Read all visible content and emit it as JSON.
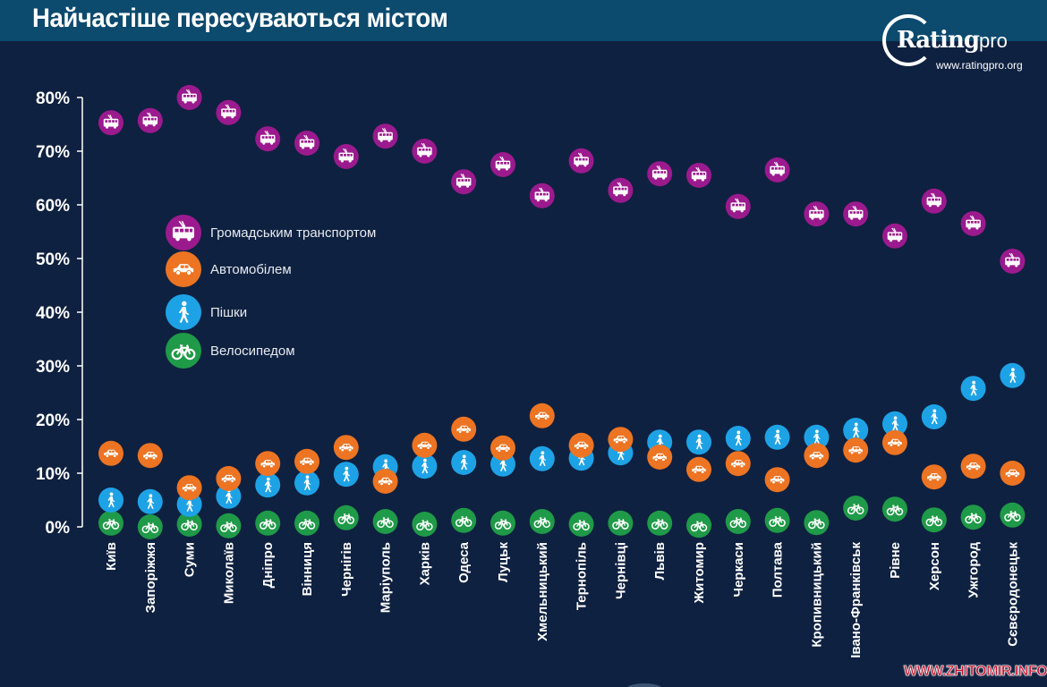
{
  "header": {
    "title": "Найчастіше пересуваються містом",
    "logo_text": "Rating",
    "logo_suffix": "pro",
    "logo_url": "www.ratingpro.org"
  },
  "watermark": "WWW.ZHITOMIR.INFO",
  "chart_data": {
    "type": "scatter",
    "title": "Найчастіше пересуваються містом",
    "xlabel": "",
    "ylabel": "",
    "ylim": [
      0,
      80
    ],
    "yticks": [
      0,
      10,
      20,
      30,
      40,
      50,
      60,
      70,
      80
    ],
    "ytick_labels": [
      "0%",
      "10%",
      "20%",
      "30%",
      "40%",
      "50%",
      "60%",
      "70%",
      "80%"
    ],
    "grid": false,
    "legend_position": "upper-left",
    "categories": [
      "Київ",
      "Запоріжжя",
      "Суми",
      "Миколаїв",
      "Дніпро",
      "Вінниця",
      "Чернігів",
      "Маріуполь",
      "Харків",
      "Одеса",
      "Луцьк",
      "Хмельницький",
      "Тернопіль",
      "Чернівці",
      "Львів",
      "Житомир",
      "Черкаси",
      "Полтава",
      "Кропивницький",
      "Івано-Франківськ",
      "Рівне",
      "Херсон",
      "Ужгород",
      "Сєвєродонецьк"
    ],
    "series": [
      {
        "name": "Громадським транспортом",
        "icon": "trolleybus-icon",
        "color": "#9b1a8e",
        "values": [
          75.3,
          75.7,
          80.0,
          77.2,
          72.3,
          71.5,
          69.0,
          72.8,
          70.0,
          64.3,
          67.5,
          61.7,
          68.2,
          62.7,
          65.8,
          65.5,
          59.7,
          66.5,
          58.3,
          58.3,
          54.2,
          60.7,
          56.5,
          49.5
        ]
      },
      {
        "name": "Автомобілем",
        "icon": "car-icon",
        "color": "#ec7423",
        "values": [
          13.7,
          13.3,
          7.3,
          9.0,
          11.8,
          12.2,
          14.8,
          8.5,
          15.2,
          18.2,
          14.7,
          20.7,
          15.2,
          16.3,
          13.0,
          10.7,
          11.8,
          8.8,
          13.3,
          14.3,
          15.7,
          9.3,
          11.3,
          10.0
        ]
      },
      {
        "name": "Пішки",
        "icon": "pedestrian-icon",
        "color": "#1ea2e6",
        "values": [
          5.0,
          4.7,
          4.2,
          5.7,
          7.8,
          8.2,
          9.8,
          11.2,
          11.3,
          12.0,
          11.7,
          12.7,
          12.8,
          13.8,
          15.8,
          15.8,
          16.5,
          16.7,
          16.7,
          18.0,
          19.2,
          20.5,
          25.8,
          28.2
        ]
      },
      {
        "name": "Велосипедом",
        "icon": "bicycle-icon",
        "color": "#1f9a48",
        "values": [
          0.7,
          0.0,
          0.5,
          0.2,
          0.7,
          0.7,
          1.7,
          1.0,
          0.5,
          1.2,
          0.7,
          1.0,
          0.5,
          0.7,
          0.7,
          0.3,
          1.0,
          1.2,
          0.8,
          3.5,
          3.3,
          1.3,
          1.8,
          2.2
        ]
      }
    ]
  },
  "colors": {
    "background": "#0f2140",
    "header_band": "#0c4a6e",
    "axis": "#ffffff"
  }
}
